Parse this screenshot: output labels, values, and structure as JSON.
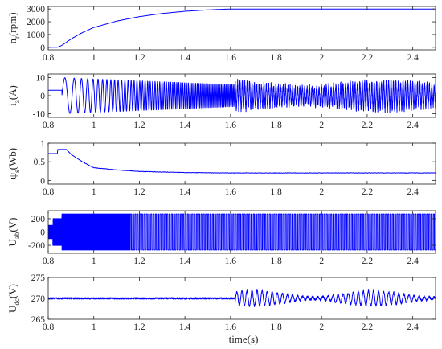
{
  "chart_data": [
    {
      "type": "line",
      "ylabel": {
        "main": "n",
        "sub": "r",
        "suffix": "(rpm)"
      },
      "xlim": [
        0.8,
        2.5
      ],
      "ylim": [
        -200,
        3200
      ],
      "yticks": [
        0,
        1000,
        2000,
        3000
      ],
      "xticks": [
        0.8,
        1,
        1.2,
        1.4,
        1.6,
        1.8,
        2,
        2.2,
        2.4
      ],
      "tick_labels_x": [
        "0.8",
        "1",
        "1.2",
        "1.4",
        "1.6",
        "1.8",
        "2",
        "2.2",
        "2.4"
      ],
      "tick_labels_y": [
        "0",
        "1000",
        "2000",
        "3000"
      ],
      "series": [
        {
          "x": [
            0.8,
            0.84,
            0.86,
            0.9,
            0.95,
            1.0,
            1.1,
            1.2,
            1.3,
            1.4,
            1.5,
            1.6,
            1.62,
            1.7,
            2.0,
            2.5
          ],
          "y": [
            0,
            0,
            150,
            650,
            1150,
            1550,
            2050,
            2400,
            2650,
            2820,
            2930,
            3000,
            3000,
            3000,
            3000,
            3000
          ]
        }
      ]
    },
    {
      "type": "line",
      "ylabel": {
        "main": "i",
        "sub": "a",
        "suffix": "(A)"
      },
      "xlim": [
        0.8,
        2.5
      ],
      "ylim": [
        -12,
        12
      ],
      "yticks": [
        -10,
        0,
        10
      ],
      "xticks": [
        0.8,
        1,
        1.2,
        1.4,
        1.6,
        1.8,
        2,
        2.2,
        2.4
      ],
      "tick_labels_x": [
        "0.8",
        "1",
        "1.2",
        "1.4",
        "1.6",
        "1.8",
        "2",
        "2.2",
        "2.4"
      ],
      "tick_labels_y": [
        "-10",
        "0",
        "10"
      ],
      "series": [
        {
          "pattern": "sinusoid",
          "initial_dc": 3,
          "amplitude_start": 10,
          "amplitude_steady": 6,
          "steady_after": 1.62,
          "oscillation_after": 0.86
        }
      ]
    },
    {
      "type": "line",
      "ylabel": {
        "main": "ψ",
        "sub": "s",
        "suffix": "(Wb)"
      },
      "xlim": [
        0.8,
        2.5
      ],
      "ylim": [
        -0.1,
        1.0
      ],
      "yticks": [
        0,
        0.5,
        1
      ],
      "xticks": [
        0.8,
        1,
        1.2,
        1.4,
        1.6,
        1.8,
        2,
        2.2,
        2.4
      ],
      "tick_labels_x": [
        "0.8",
        "1",
        "1.2",
        "1.4",
        "1.6",
        "1.8",
        "2",
        "2.2",
        "2.4"
      ],
      "tick_labels_y": [
        "0",
        "0.5",
        "1"
      ],
      "series": [
        {
          "x": [
            0.8,
            0.84,
            0.841,
            0.88,
            0.9,
            0.95,
            1.0,
            1.1,
            1.2,
            1.4,
            1.6,
            2.0,
            2.5
          ],
          "y": [
            0.72,
            0.72,
            0.83,
            0.83,
            0.7,
            0.5,
            0.34,
            0.28,
            0.24,
            0.21,
            0.2,
            0.2,
            0.2
          ]
        }
      ]
    },
    {
      "type": "line",
      "ylabel": {
        "main": "U",
        "sub": "ab",
        "suffix": "(V)"
      },
      "xlim": [
        0.8,
        2.5
      ],
      "ylim": [
        -320,
        320
      ],
      "yticks": [
        -200,
        0,
        200
      ],
      "xticks": [
        0.8,
        1,
        1.2,
        1.4,
        1.6,
        1.8,
        2,
        2.2,
        2.4
      ],
      "tick_labels_x": [
        "0.8",
        "1",
        "1.2",
        "1.4",
        "1.6",
        "1.8",
        "2",
        "2.2",
        "2.4"
      ],
      "tick_labels_y": [
        "-200",
        "0",
        "200"
      ],
      "series": [
        {
          "pattern": "pwm",
          "amplitude": 270,
          "block_level": 100,
          "oscillation_after": 0.86
        }
      ]
    },
    {
      "type": "line",
      "ylabel": {
        "main": "U",
        "sub": "dc",
        "suffix": "(V)"
      },
      "xlim": [
        0.8,
        2.5
      ],
      "ylim": [
        265,
        275
      ],
      "yticks": [
        265,
        270,
        275
      ],
      "xticks": [
        0.8,
        1,
        1.2,
        1.4,
        1.6,
        1.8,
        2,
        2.2,
        2.4
      ],
      "tick_labels_x": [
        "0.8",
        "1",
        "1.2",
        "1.4",
        "1.6",
        "1.8",
        "2",
        "2.2",
        "2.4"
      ],
      "tick_labels_y": [
        "265",
        "270",
        "275"
      ],
      "series": [
        {
          "pattern": "ripple",
          "mean": 270,
          "ripple_before": 0.4,
          "ripple_after": 1.8,
          "change_at": 1.62
        }
      ]
    }
  ],
  "xlabel": "time(s)"
}
